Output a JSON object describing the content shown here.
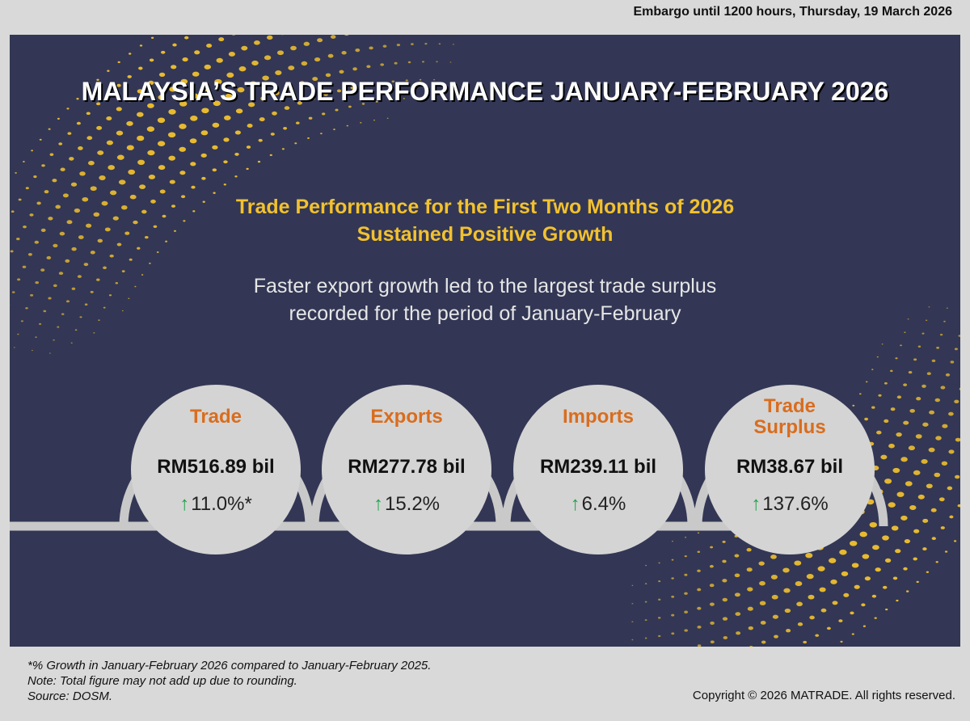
{
  "embargo": "Embargo until 1200 hours, Thursday, 19 March 2026",
  "title": "MALAYSIA’S TRADE PERFORMANCE JANUARY-FEBRUARY 2026",
  "subtitle": {
    "line1": "Trade Performance for the First Two Months of 2026",
    "line2": "Sustained Positive Growth"
  },
  "tagline": {
    "line1": "Faster export growth led to the largest trade surplus",
    "line2": "recorded for the period of January-February"
  },
  "metrics": [
    {
      "label": "Trade",
      "value": "RM516.89 bil",
      "growth": "11.0%*"
    },
    {
      "label": "Exports",
      "value": "RM277.78 bil",
      "growth": "15.2%"
    },
    {
      "label": "Imports",
      "value": "RM239.11 bil",
      "growth": "6.4%"
    },
    {
      "label": "Trade Surplus",
      "value": "RM38.67 bil",
      "growth": "137.6%"
    }
  ],
  "growth_arrow": "↑",
  "footnotes": {
    "growth_note": "*% Growth in January-February 2026 compared to January-February 2025.",
    "rounding_note": "Note: Total figure may not add up due to rounding.",
    "source": "Source: DOSM."
  },
  "copyright": "Copyright © 2026 MATRADE. All rights reserved.",
  "colors": {
    "panel": "#333755",
    "gold": "#f2c12e",
    "label_orange": "#d96d1e",
    "arrow_green": "#22a34a",
    "circle": "#d4d4d4"
  }
}
